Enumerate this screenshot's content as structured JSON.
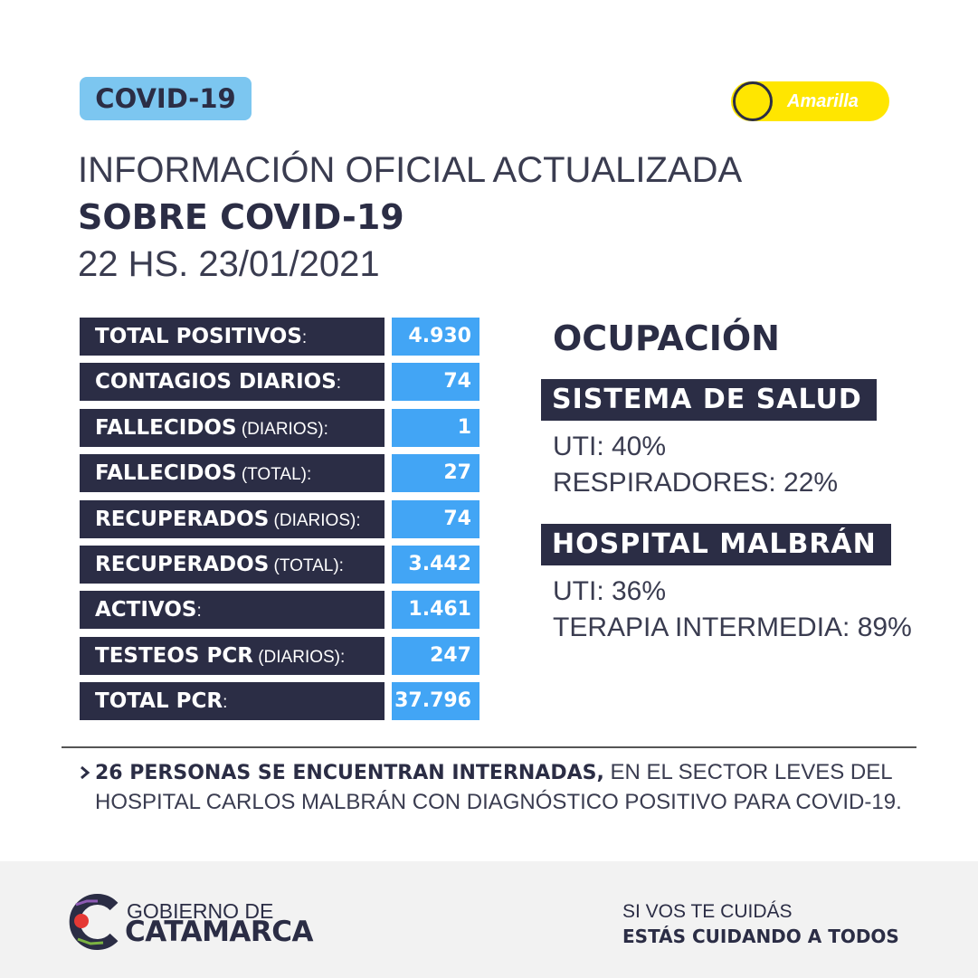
{
  "badge": "COVID-19",
  "status": "Amarilla",
  "header": {
    "line1": "INFORMACIÓN OFICIAL ACTUALIZADA",
    "line2": "SOBRE COVID-19",
    "date": "22 HS. 23/01/2021"
  },
  "stats": [
    {
      "label": "TOTAL POSITIVOS",
      "suffix": ":",
      "value": "4.930"
    },
    {
      "label": "CONTAGIOS DIARIOS",
      "suffix": ":",
      "value": "74"
    },
    {
      "label": "FALLECIDOS",
      "suffix": " (DIARIOS):",
      "value": "1"
    },
    {
      "label": "FALLECIDOS",
      "suffix": " (TOTAL):",
      "value": "27"
    },
    {
      "label": "RECUPERADOS",
      "suffix": " (DIARIOS):",
      "value": "74"
    },
    {
      "label": "RECUPERADOS",
      "suffix": " (TOTAL):",
      "value": "3.442"
    },
    {
      "label": "ACTIVOS",
      "suffix": ":",
      "value": "1.461"
    },
    {
      "label": "TESTEOS PCR",
      "suffix": " (DIARIOS):",
      "value": "247"
    },
    {
      "label": "TOTAL PCR",
      "suffix": ":",
      "value": "37.796"
    }
  ],
  "occupancy": {
    "title": "OCUPACIÓN",
    "sections": [
      {
        "title": "SISTEMA DE SALUD",
        "items": [
          "UTI: 40%",
          "RESPIRADORES: 22%"
        ]
      },
      {
        "title": "HOSPITAL MALBRÁN",
        "items": [
          "UTI: 36%",
          "TERAPIA INTERMEDIA: 89%"
        ]
      }
    ]
  },
  "note": {
    "bold": "26 PERSONAS SE ENCUENTRAN INTERNADAS,",
    "text": " EN EL SECTOR LEVES DEL HOSPITAL CARLOS MALBRÁN CON DIAGNÓSTICO POSITIVO PARA COVID-19."
  },
  "footer": {
    "logo_line1": "GOBIERNO DE",
    "logo_line2": "CATAMARCA",
    "slogan_line1": "SI VOS TE CUIDÁS",
    "slogan_line2": "ESTÁS CUIDANDO A TODOS"
  }
}
